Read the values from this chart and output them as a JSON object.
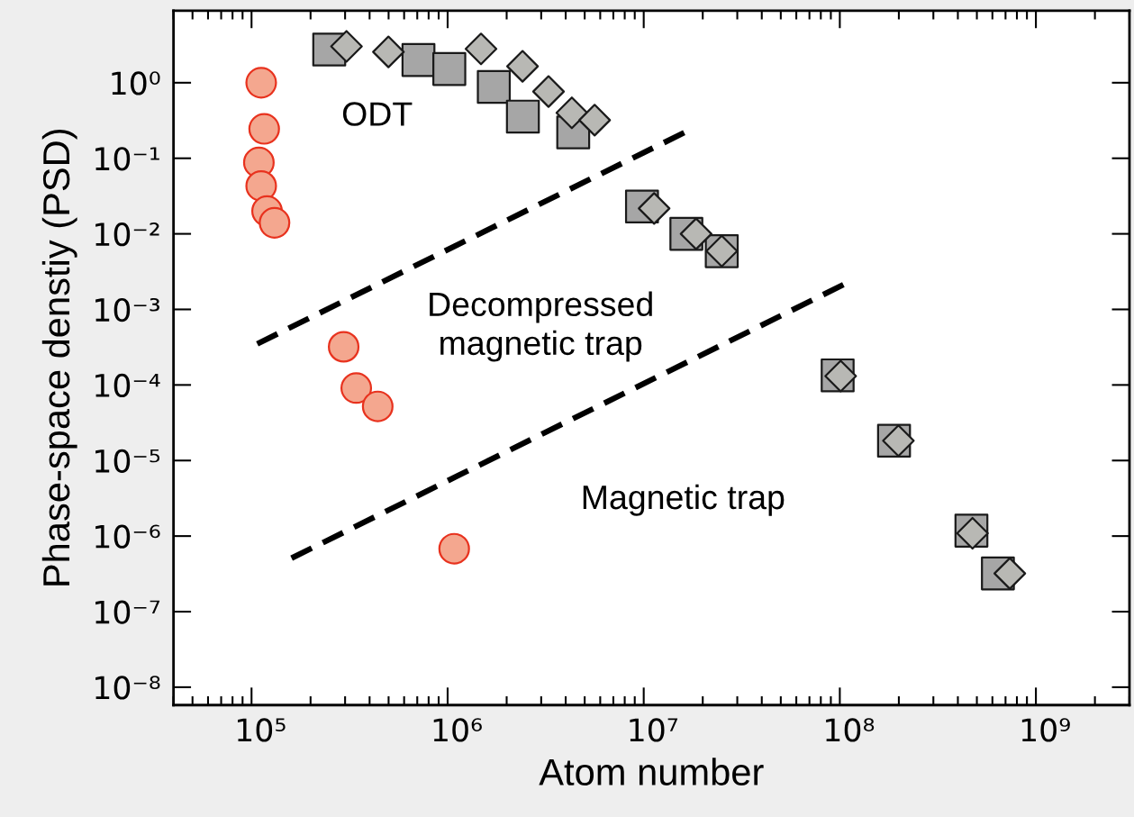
{
  "chart_data": {
    "type": "scatter",
    "xlabel": "Atom number",
    "ylabel": "Phase-space denstiy (PSD)",
    "log": "xy",
    "grid": false,
    "legend": false,
    "xlim": [
      40000.0,
      3000000000.0
    ],
    "ylim": [
      5.8e-09,
      9
    ],
    "xticks": [
      {
        "value": 100000.0,
        "label": "10⁵"
      },
      {
        "value": 1000000.0,
        "label": "10⁶"
      },
      {
        "value": 10000000.0,
        "label": "10⁷"
      },
      {
        "value": 100000000.0,
        "label": "10⁸"
      },
      {
        "value": 1000000000.0,
        "label": "10⁹"
      }
    ],
    "yticks": [
      {
        "value": 1e-08,
        "label": "10⁻⁸"
      },
      {
        "value": 1e-07,
        "label": "10⁻⁷"
      },
      {
        "value": 1e-06,
        "label": "10⁻⁶"
      },
      {
        "value": 1e-05,
        "label": "10⁻⁵"
      },
      {
        "value": 0.0001,
        "label": "10⁻⁴"
      },
      {
        "value": 0.001,
        "label": "10⁻³"
      },
      {
        "value": 0.01,
        "label": "10⁻²"
      },
      {
        "value": 0.1,
        "label": "10⁻¹"
      },
      {
        "value": 1,
        "label": "10⁰"
      }
    ],
    "series": [
      {
        "marker": "circle",
        "color": "#f4a78f",
        "x": [
          112000.0,
          116000.0,
          109000.0,
          112000.0,
          120000.0,
          131000.0,
          295000.0,
          342000.0,
          440000.0,
          1080000.0
        ],
        "values": [
          1.0,
          0.245,
          0.088,
          0.043,
          0.02,
          0.014,
          0.00032,
          9.1e-05,
          5.2e-05,
          6.8e-07
        ]
      },
      {
        "marker": "square",
        "color": "#a6a6a6",
        "x": [
          249000.0,
          710000.0,
          1020000.0,
          1720000.0,
          2420000.0,
          4370000.0,
          9800000.0,
          16500000.0,
          25000000.0,
          97500000.0,
          189000000.0,
          469000000.0,
          640000000.0
        ],
        "values": [
          2.75,
          2.0,
          1.52,
          0.88,
          0.356,
          0.22,
          0.023,
          0.01,
          0.0059,
          0.000134,
          1.83e-05,
          1.18e-06,
          3.2e-07
        ]
      },
      {
        "marker": "diamond",
        "color": "#b8b8b4",
        "x": [
          305000.0,
          499000.0,
          1480000.0,
          2410000.0,
          3270000.0,
          4300000.0,
          5620000.0,
          11300000.0,
          18500000.0,
          25000000.0,
          101000000.0,
          199000000.0,
          475000000.0,
          736000000.0
        ],
        "values": [
          3.03,
          2.56,
          2.8,
          1.65,
          0.765,
          0.4,
          0.32,
          0.0217,
          0.01,
          0.0059,
          0.000131,
          1.83e-05,
          1.09e-06,
          3.2e-07
        ]
      },
      {
        "type": "line",
        "line_style": "dashed",
        "color": "#000000",
        "x": [
          107000.0,
          16900000.0
        ],
        "values": [
          0.00035,
          0.233
        ]
      },
      {
        "type": "line",
        "line_style": "dashed",
        "color": "#000000",
        "x": [
          160000.0,
          111000000.0
        ],
        "values": [
          5.1e-07,
          0.0023
        ]
      }
    ],
    "annotations": [
      "ODT",
      "Decompressed\nmagnetic trap",
      "Magnetic trap"
    ]
  }
}
